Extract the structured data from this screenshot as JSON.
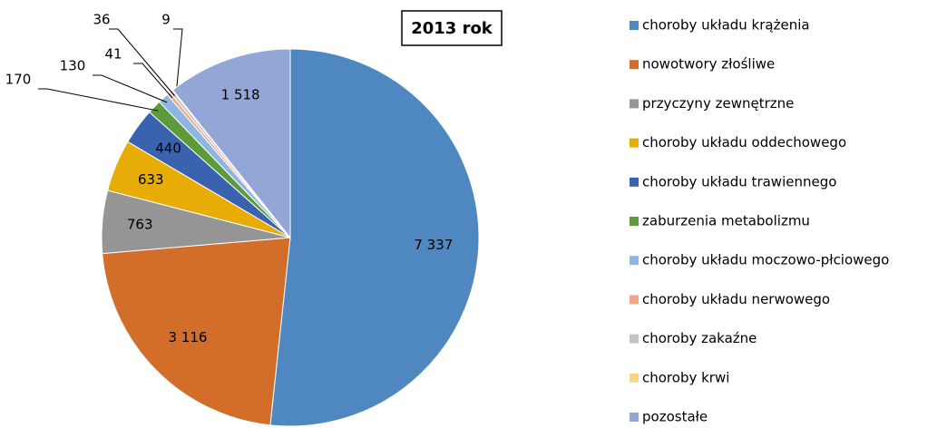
{
  "chart_data": {
    "type": "pie",
    "title": "2013 rok",
    "categories": [
      "choroby układu krążenia",
      "nowotwory złośliwe",
      "przyczyny zewnętrzne",
      "choroby układu oddechowego",
      "choroby układu trawiennego",
      "zaburzenia metabolizmu",
      "choroby układu moczowo-płciowego",
      "choroby układu nerwowego",
      "choroby zakaźne",
      "choroby krwi",
      "pozostałe"
    ],
    "values": [
      7337,
      3116,
      763,
      633,
      440,
      170,
      130,
      41,
      36,
      9,
      1518
    ],
    "value_labels": [
      "7 337",
      "3 116",
      "763",
      "633",
      "440",
      "170",
      "130",
      "41",
      "36",
      "9",
      "1 518"
    ],
    "colors": [
      "#4f88c0",
      "#d26d2a",
      "#959595",
      "#e8ac06",
      "#3a62ae",
      "#5c9a3c",
      "#8fb6e0",
      "#f2a68c",
      "#c4c4c4",
      "#fbd48c",
      "#93a6d6"
    ],
    "legend": "right"
  }
}
